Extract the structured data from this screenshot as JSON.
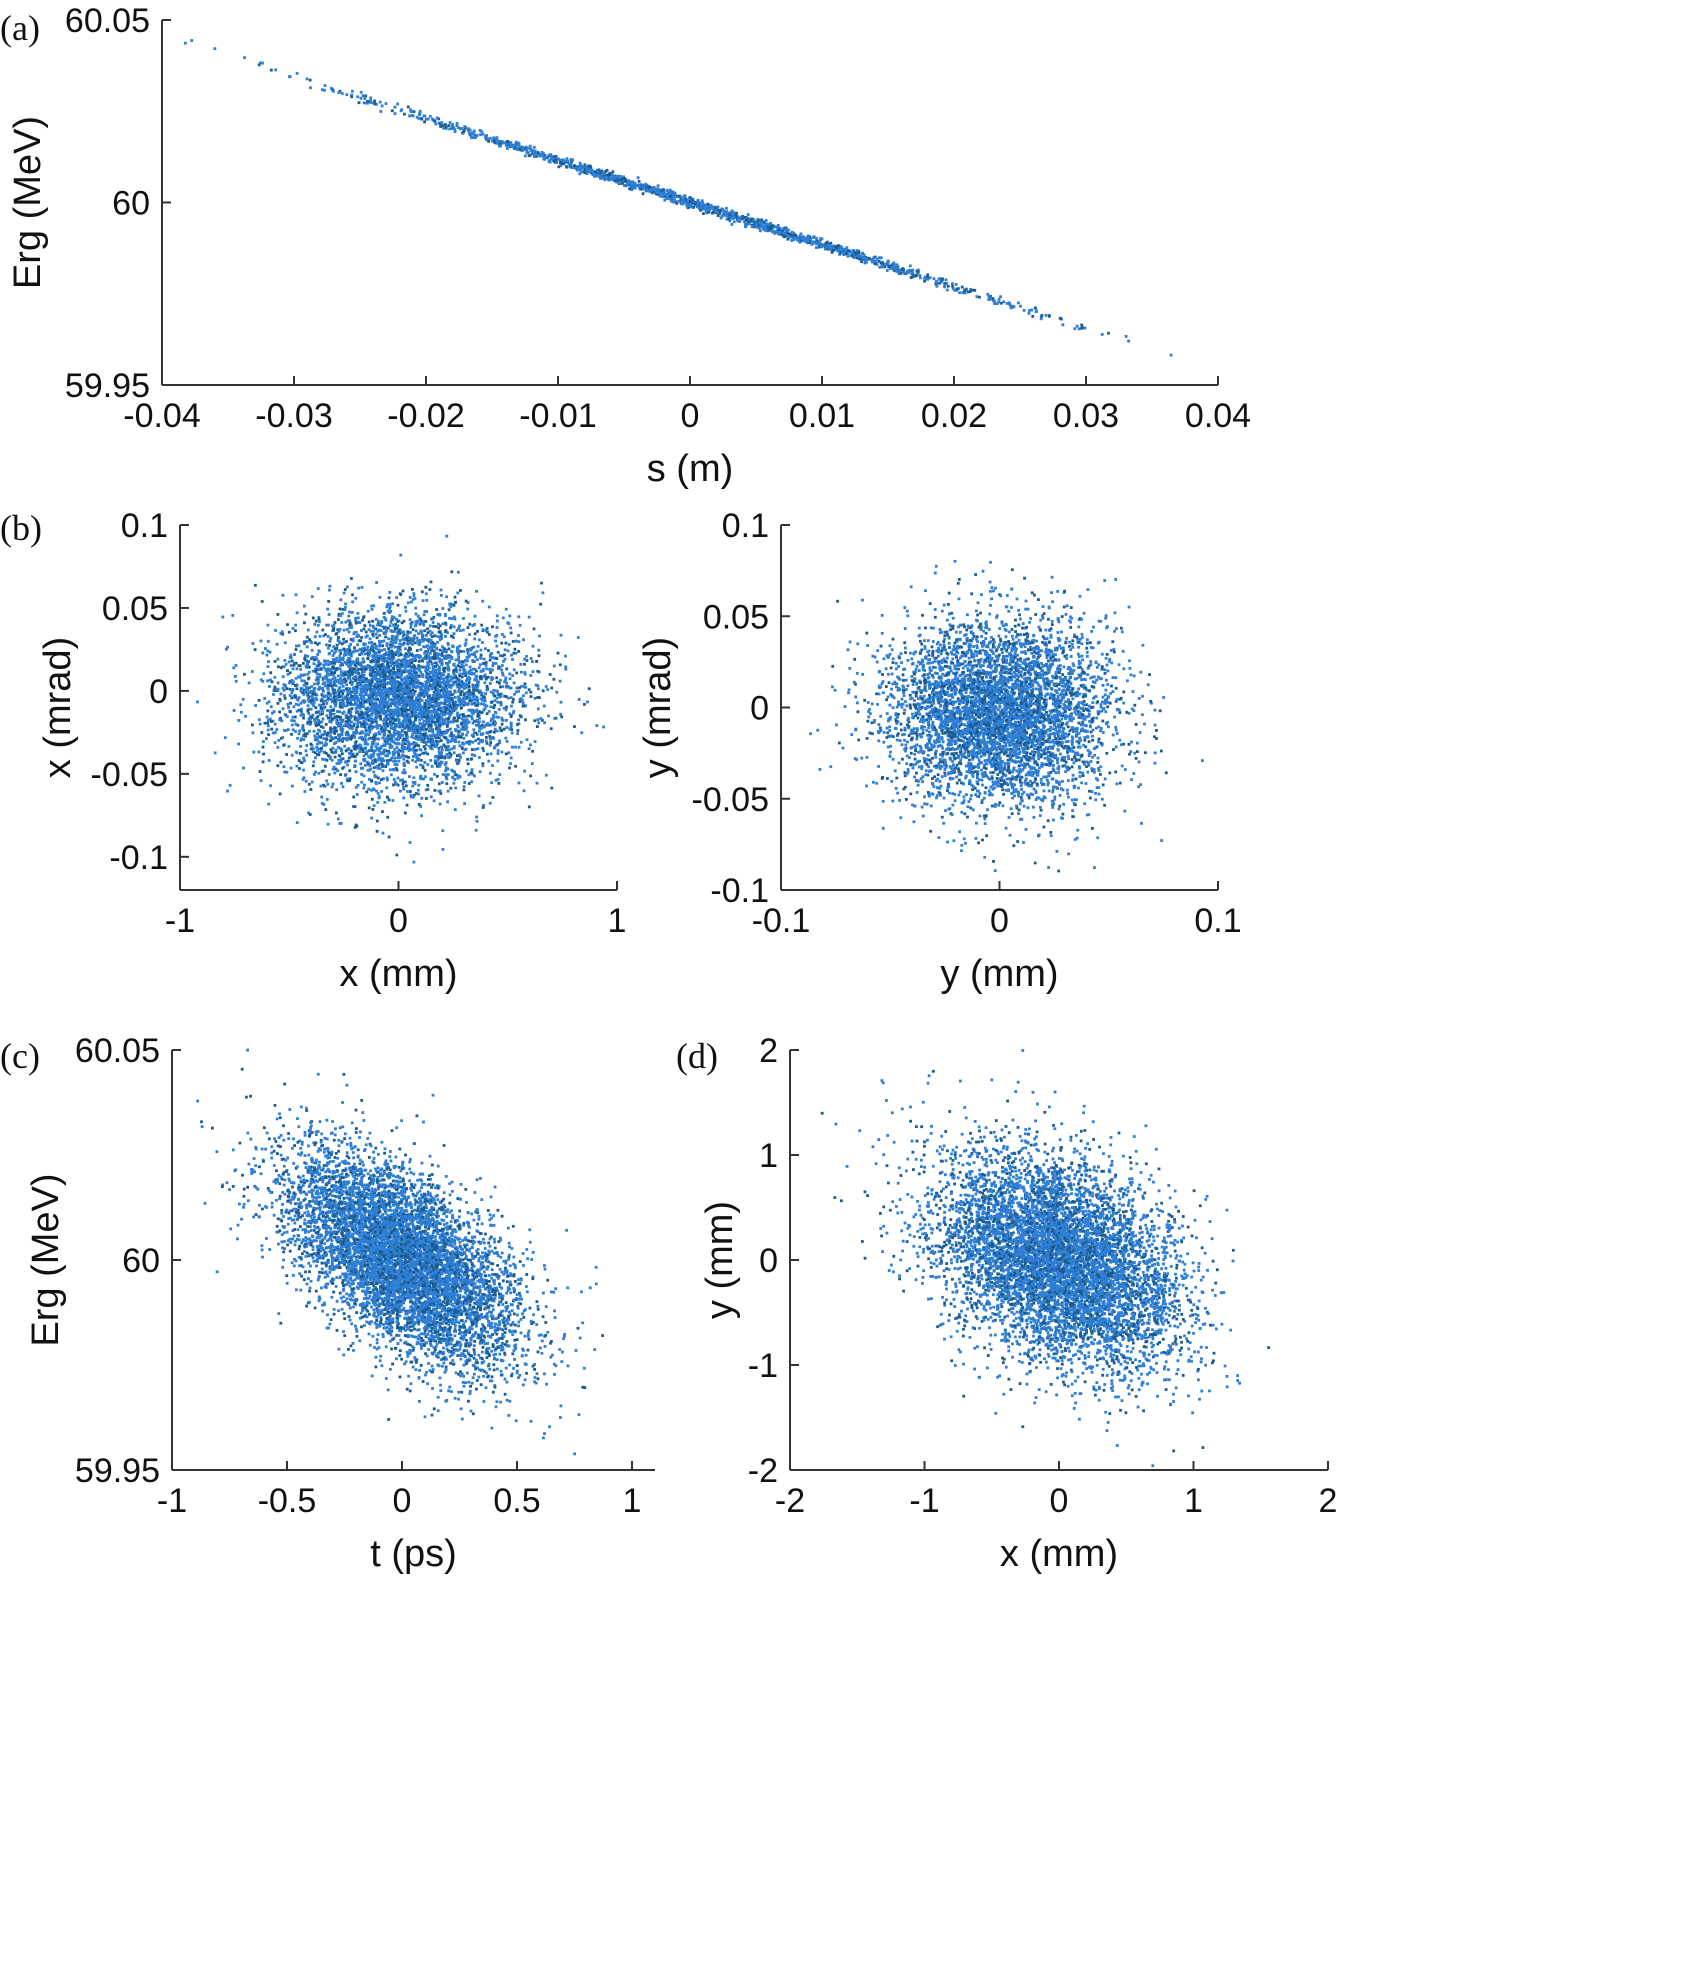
{
  "figure": {
    "accent_color": "#2f7fd6",
    "dark_point_color": "#1b5c8f"
  },
  "chart_data": [
    {
      "id": "a",
      "panel_label": "(a)",
      "type": "scatter",
      "xlabel": "s (m)",
      "ylabel": "Erg (MeV)",
      "xlim": [
        -0.04,
        0.04
      ],
      "ylim": [
        59.95,
        60.05
      ],
      "xticks": [
        -0.04,
        -0.03,
        -0.02,
        -0.01,
        0,
        0.01,
        0.02,
        0.03,
        0.04
      ],
      "xtick_labels": [
        "-0.04",
        "-0.03",
        "-0.02",
        "-0.01",
        "0",
        "0.01",
        "0.02",
        "0.03",
        "0.04"
      ],
      "yticks": [
        59.95,
        60,
        60.05
      ],
      "ytick_labels": [
        "59.95",
        "60",
        "60.05"
      ],
      "grid": false,
      "color": "#2f7fd6",
      "trend": {
        "x": [
          -0.04,
          0.04
        ],
        "y": [
          60.046,
          59.954
        ]
      },
      "spread": {
        "x_sigma": 0.012,
        "y_sigma": 0.0007,
        "x_range": [
          -0.0395,
          0.0395
        ],
        "n_points": 1500
      }
    },
    {
      "id": "b1",
      "panel_label": "(b)",
      "type": "scatter",
      "xlabel": "x (mm)",
      "ylabel": "x (mrad)",
      "xlim": [
        -1,
        1
      ],
      "ylim": [
        -0.12,
        0.1
      ],
      "xticks": [
        -1,
        0,
        1
      ],
      "xtick_labels": [
        "-1",
        "0",
        "1"
      ],
      "yticks": [
        -0.1,
        -0.05,
        0,
        0.05,
        0.1
      ],
      "ytick_labels": [
        "-0.1",
        "-0.05",
        "0",
        "0.05",
        "0.1"
      ],
      "grid": false,
      "color": "#2f7fd6",
      "distribution": {
        "x_center": 0,
        "y_center": -0.005,
        "x_sigma": 0.27,
        "y_sigma": 0.026,
        "correlation": 0,
        "n_points": 5000
      }
    },
    {
      "id": "b2",
      "panel_label": "",
      "type": "scatter",
      "xlabel": "y (mm)",
      "ylabel": "y (mrad)",
      "xlim": [
        -0.1,
        0.1
      ],
      "ylim": [
        -0.1,
        0.1
      ],
      "xticks": [
        -0.1,
        0,
        0.1
      ],
      "xtick_labels": [
        "-0.1",
        "0",
        "0.1"
      ],
      "yticks": [
        -0.1,
        -0.05,
        0,
        0.05,
        0.1
      ],
      "ytick_labels": [
        "-0.1",
        "-0.05",
        "0",
        "0.05",
        "0.1"
      ],
      "grid": false,
      "color": "#2f7fd6",
      "distribution": {
        "x_center": 0,
        "y_center": -0.003,
        "x_sigma": 0.025,
        "y_sigma": 0.025,
        "correlation": 0,
        "n_points": 5000
      }
    },
    {
      "id": "c",
      "panel_label": "(c)",
      "type": "scatter",
      "xlabel": "t (ps)",
      "ylabel": "Erg (MeV)",
      "xlim": [
        -1,
        1.1
      ],
      "ylim": [
        59.95,
        60.05
      ],
      "xticks": [
        -1,
        -0.5,
        0,
        0.5,
        1
      ],
      "xtick_labels": [
        "-1",
        "-0.5",
        "0",
        "0.5",
        "1"
      ],
      "yticks": [
        59.95,
        60,
        60.05
      ],
      "ytick_labels": [
        "59.95",
        "60",
        "60.05"
      ],
      "grid": false,
      "color": "#2f7fd6",
      "distribution": {
        "x_center": 0,
        "y_center": 60.0,
        "x_sigma": 0.25,
        "y_sigma": 0.0125,
        "correlation": -0.6,
        "n_points": 7000
      }
    },
    {
      "id": "d",
      "panel_label": "(d)",
      "type": "scatter",
      "xlabel": "x (mm)",
      "ylabel": "y (mm)",
      "xlim": [
        -2,
        2
      ],
      "ylim": [
        -2,
        2
      ],
      "xticks": [
        -2,
        -1,
        0,
        1,
        2
      ],
      "xtick_labels": [
        "-2",
        "-1",
        "0",
        "1",
        "2"
      ],
      "yticks": [
        -2,
        -1,
        0,
        1,
        2
      ],
      "ytick_labels": [
        "-2",
        "-1",
        "0",
        "1",
        "2"
      ],
      "grid": false,
      "color": "#2f7fd6",
      "distribution": {
        "x_center": 0,
        "y_center": 0,
        "x_sigma": 0.45,
        "y_sigma": 0.5,
        "correlation": -0.35,
        "n_points": 7000
      }
    }
  ]
}
